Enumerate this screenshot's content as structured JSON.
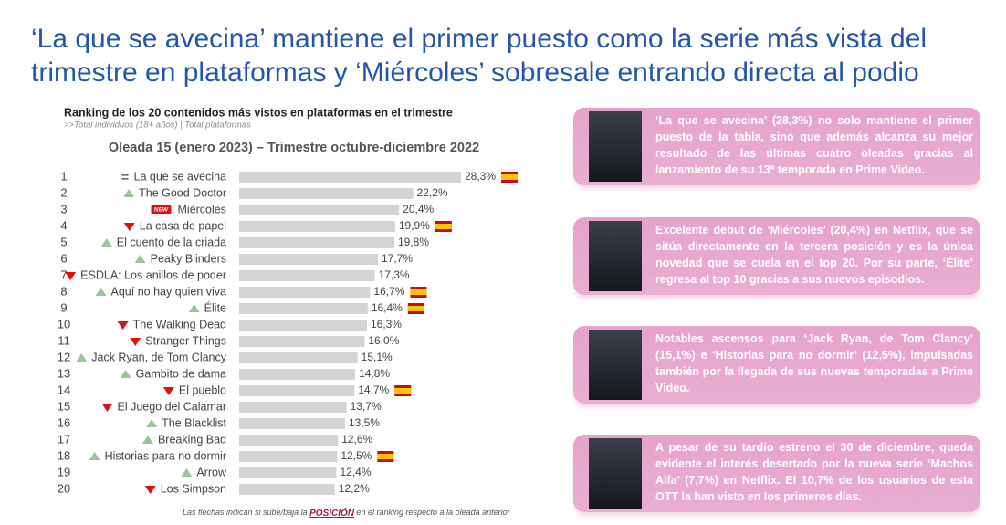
{
  "title": [
    "‘La que se avecina’ mantiene el primer puesto como la serie más vista del",
    "trimestre en plataformas y ‘Miércoles’ sobresale entrando directa al podio"
  ],
  "chart_data": {
    "type": "bar",
    "orientation": "horizontal",
    "title": "Ranking de los 20 contenidos más vistos en plataformas en el trimestre",
    "subtitle": ">>Total individuos (18+ años) | Total plataformas",
    "heading": "Oleada 15 (enero 2023) – Trimestre octubre-diciembre 2022",
    "ranks": [
      1,
      2,
      3,
      4,
      5,
      6,
      7,
      8,
      9,
      10,
      11,
      12,
      13,
      14,
      15,
      16,
      17,
      18,
      19,
      20
    ],
    "categories": [
      "La que se avecina",
      "The Good Doctor",
      "Miércoles",
      "La casa de papel",
      "El cuento de la criada",
      "Peaky Blinders",
      "ESDLA: Los anillos de poder",
      "Aquí no hay quien viva",
      "Élite",
      "The Walking Dead",
      "Stranger Things",
      "Jack Ryan, de Tom Clancy",
      "Gambito de dama",
      "El pueblo",
      "El Juego del Calamar",
      "The Blacklist",
      "Breaking Bad",
      "Historias para no dormir",
      "Arrow",
      "Los Simpson"
    ],
    "values": [
      28.3,
      22.2,
      20.4,
      19.9,
      19.8,
      17.7,
      17.3,
      16.7,
      16.4,
      16.3,
      16.0,
      15.1,
      14.8,
      14.7,
      13.7,
      13.5,
      12.6,
      12.5,
      12.4,
      12.2
    ],
    "value_labels": [
      "28,3%",
      "22,2%",
      "20,4%",
      "19,9%",
      "19,8%",
      "17,7%",
      "17,3%",
      "16,7%",
      "16,4%",
      "16,3%",
      "16,0%",
      "15,1%",
      "14,8%",
      "14,7%",
      "13,7%",
      "13,5%",
      "12,6%",
      "12,5%",
      "12,4%",
      "12,2%"
    ],
    "trend": [
      "equal",
      "up",
      "new",
      "down",
      "up",
      "up",
      "down",
      "up",
      "up",
      "down",
      "down",
      "up",
      "up",
      "down",
      "down",
      "up",
      "up",
      "up",
      "up",
      "down"
    ],
    "spanish_flag": [
      true,
      false,
      false,
      true,
      false,
      false,
      false,
      true,
      true,
      false,
      false,
      false,
      false,
      true,
      false,
      false,
      false,
      true,
      false,
      false
    ],
    "new_label": "NEW",
    "color": "#d4d4d4",
    "footnote": [
      "Las flechas indican si sube/baja la ",
      "POSICIÓN",
      " en el ranking respecto a la oleada anterior"
    ]
  },
  "panels": [
    {
      "text": "‘La que se avecina’ (28,3%) no solo mantiene el primer puesto de la tabla, sino que además alcanza su mejor resultado de las últimas cuatro oleadas gracias al lanzamiento de su 13ª temporada en Prime Video."
    },
    {
      "text": "Excelente debut de ‘Miércoles’ (20,4%) en Netflix, que se sitúa directamente en la tercera posición y es la única novedad que se cuela en el top 20. Por su parte, ‘Élite’ regresa al top 10 gracias a sus nuevos episodios."
    },
    {
      "text": "Notables ascensos para ‘Jack Ryan, de Tom Clancy’ (15,1%) e ‘Historias para no dormir’ (12,5%), impulsadas también por la llegada de sus nuevas temporadas a Prime Video."
    },
    {
      "text": "A pesar de su tardío estreno el 30 de diciembre, queda evidente el interés desertado por la nueva serie ‘Machos Alfa’ (7,7%) en Netflix. El 10,7% de los usuarios de esta OTT la han visto en los primeros días."
    }
  ]
}
